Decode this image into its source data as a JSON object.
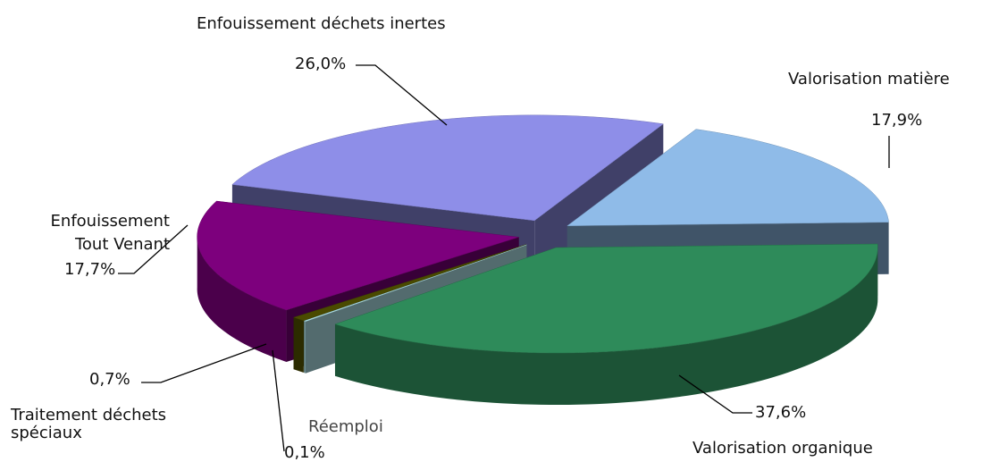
{
  "chart_data": {
    "type": "pie",
    "categories": [
      "Enfouissement déchets inertes",
      "Valorisation matière",
      "Valorisation organique",
      "Réemploi",
      "Traitement déchets spéciaux",
      "Enfouissement Tout Venant"
    ],
    "values": [
      26.0,
      17.9,
      37.6,
      0.1,
      0.7,
      17.7
    ],
    "value_labels": [
      "26,0%",
      "17,9%",
      "37,6%",
      "0,1%",
      "0,7%",
      "17,7%"
    ],
    "colors": [
      "#8e8ee8",
      "#8fbbe8",
      "#2e8b5a",
      "#b8eef5",
      "#4a4a00",
      "#7d007d"
    ]
  }
}
